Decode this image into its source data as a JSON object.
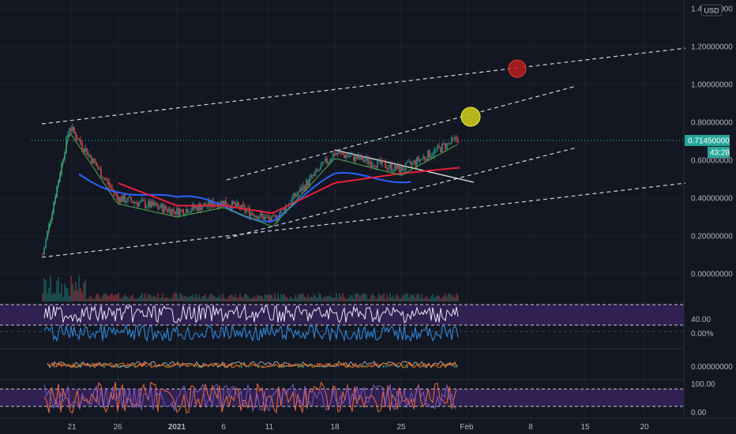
{
  "currency_button": "USD",
  "price_axis": {
    "ticks": [
      "1.40000000",
      "1.20000000",
      "1.00000000",
      "0.80000000",
      "0.60000000",
      "0.40000000",
      "0.20000000",
      "0.00000000"
    ],
    "ticks_value": [
      1.4,
      1.2,
      1.0,
      0.8,
      0.6,
      0.4,
      0.2,
      0.0
    ],
    "last_price": "0.71450000",
    "countdown": "43:28"
  },
  "time_axis": {
    "labels": [
      "21",
      "26",
      "2021",
      "6",
      "11",
      "18",
      "25",
      "Feb",
      "8",
      "15",
      "20"
    ]
  },
  "sub_axes": {
    "rsi_level": "40.00",
    "pct_level": "0.00%",
    "macd_level": "0.00000000",
    "stoch_top": "100.00",
    "stoch_bottom": "0.00"
  },
  "colors": {
    "background": "#131722",
    "up": "#26a69a",
    "down": "#ef5350",
    "ma_red": "#e91e3c",
    "ma_blue": "#2962ff",
    "ma_green": "#4caf50",
    "marker_red": "#b71c1c",
    "marker_yellow": "#c6c61a",
    "price_label": "#26a69a",
    "rsi_band": "#4a2a7a",
    "stoch_band": "#4a2a7a"
  },
  "chart_data": {
    "type": "line",
    "series": [
      {
        "x": [
          "21",
          "26",
          "2021",
          "6",
          "11",
          "18",
          "25",
          "Feb"
        ],
        "values": [
          0.78,
          0.4,
          0.33,
          0.38,
          0.28,
          0.64,
          0.55,
          0.7145
        ]
      },
      {
        "x": [
          "21",
          "26",
          "2021",
          "6",
          "11",
          "18",
          "25",
          "Feb"
        ],
        "values": [
          0.55,
          0.48,
          0.36,
          0.36,
          0.32,
          0.48,
          0.53,
          0.56
        ]
      }
    ],
    "ylim": [
      -0.1,
      1.45
    ],
    "annotations": [
      "trend channel lines",
      "red circle marker near 1.10",
      "yellow circle marker near 0.85"
    ]
  }
}
